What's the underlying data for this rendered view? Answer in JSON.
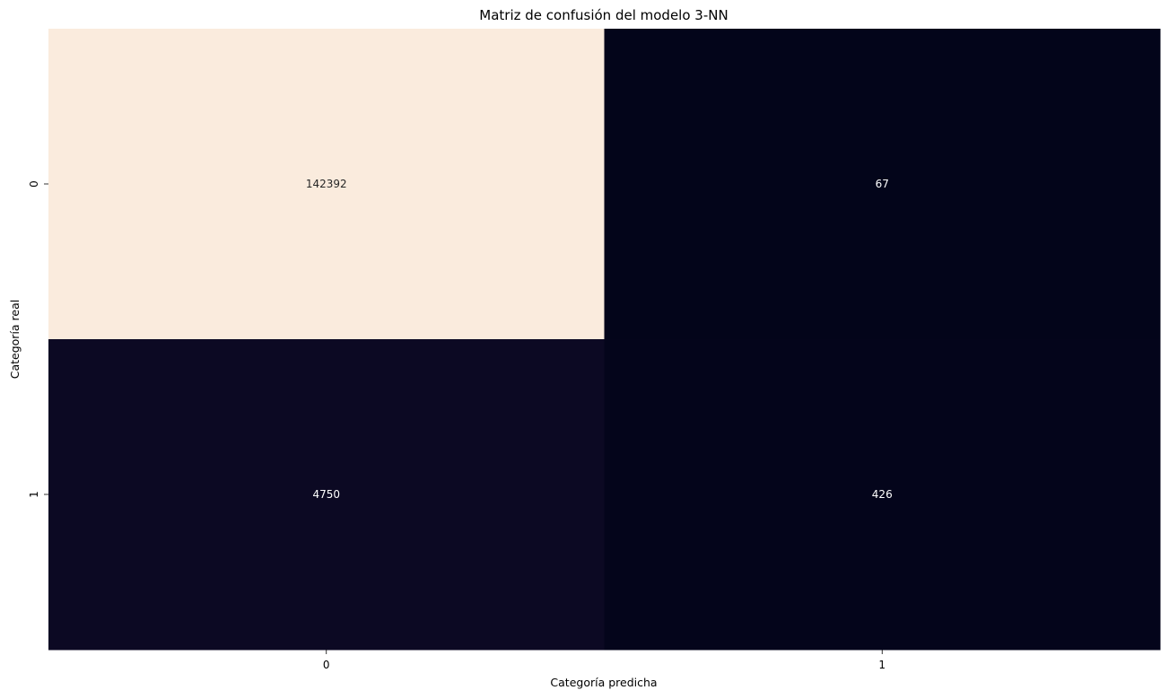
{
  "chart_data": {
    "type": "heatmap",
    "title": "Matriz de confusión del modelo 3-NN",
    "xlabel": "Categoría predicha",
    "ylabel": "Categoría real",
    "x_categories": [
      "0",
      "1"
    ],
    "y_categories": [
      "0",
      "1"
    ],
    "values": [
      [
        142392,
        67
      ],
      [
        4750,
        426
      ]
    ],
    "colorbar": false,
    "colormap": "rocket",
    "colors": {
      "high": "#faebdd",
      "low": "#03051a"
    }
  }
}
